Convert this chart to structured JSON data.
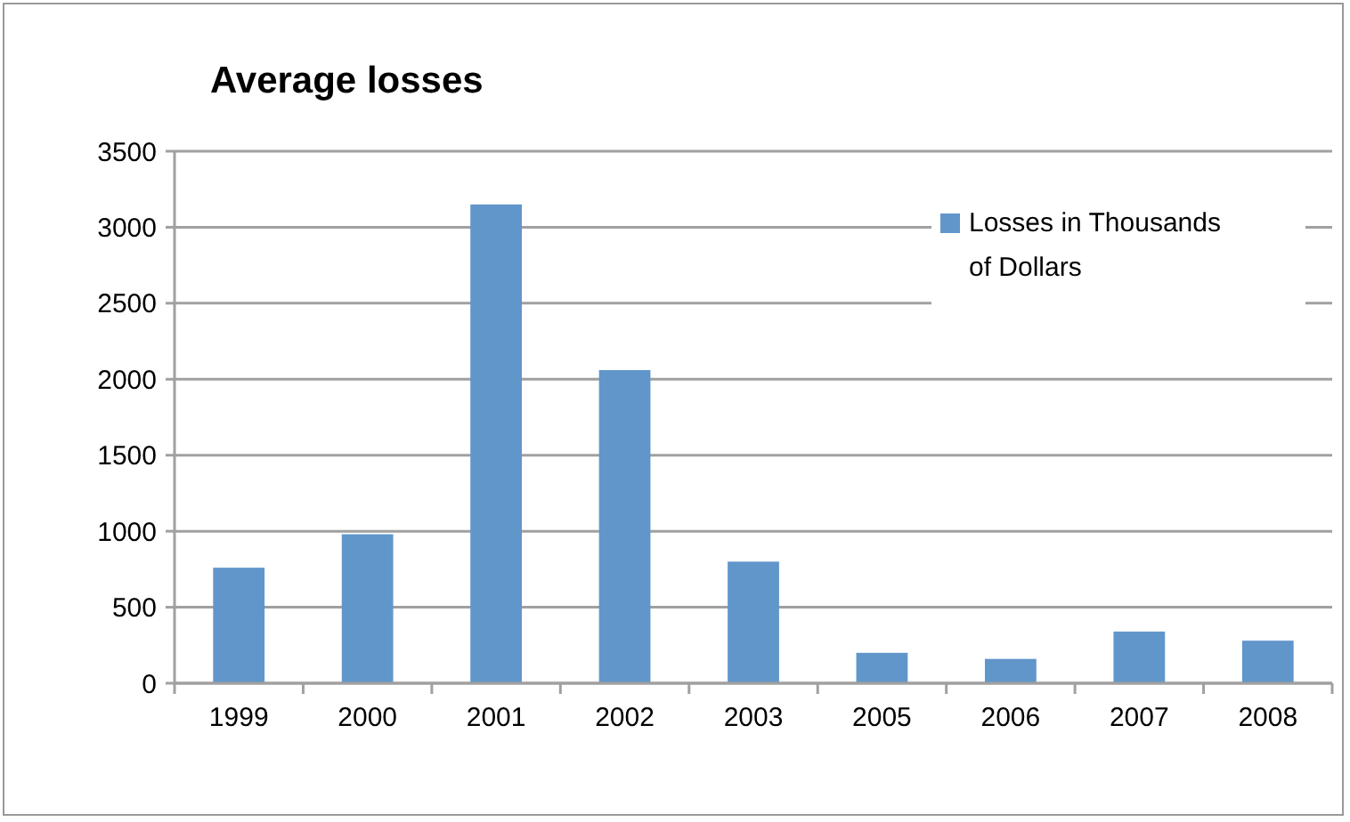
{
  "chart_data": {
    "type": "bar",
    "title": "Average losses",
    "categories": [
      "1999",
      "2000",
      "2001",
      "2002",
      "2003",
      "2005",
      "2006",
      "2007",
      "2008"
    ],
    "series": [
      {
        "name": "Losses in Thousands of Dollars",
        "color": "#6196cb",
        "values": [
          760,
          980,
          3150,
          2060,
          800,
          200,
          160,
          340,
          280
        ]
      }
    ],
    "ylim": [
      0,
      3500
    ],
    "yticks": [
      0,
      500,
      1000,
      1500,
      2000,
      2500,
      3000,
      3500
    ],
    "grid": "y",
    "legend": "top right"
  }
}
